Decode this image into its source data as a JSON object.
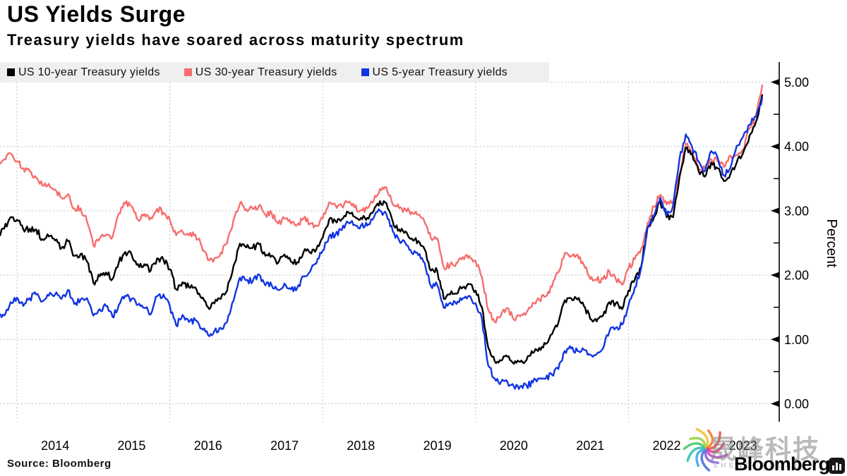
{
  "header": {
    "title": "US Yields Surge",
    "subtitle": "Treasury yields have soared across maturity spectrum"
  },
  "legend": {
    "items": [
      {
        "label": "US 10-year Treasury yields",
        "color": "#000000"
      },
      {
        "label": "US 30-year Treasury yields",
        "color": "#f66e6e"
      },
      {
        "label": "US 5-year Treasury yields",
        "color": "#1335e0"
      }
    ]
  },
  "axis": {
    "ylabel": "Percent",
    "yticks": [
      "5.00",
      "4.00",
      "3.00",
      "2.00",
      "1.00",
      "0.00"
    ],
    "ytick_values": [
      5,
      4,
      3,
      2,
      1,
      0
    ],
    "minor_tick_values": [
      0.5,
      1.5,
      2.5,
      3.5,
      4.5
    ],
    "x_years": [
      "2014",
      "2015",
      "2016",
      "2017",
      "2018",
      "2019",
      "2020",
      "2021",
      "2022",
      "2023"
    ]
  },
  "source": "Source: Bloomberg",
  "watermark": {
    "cn": "晟峰科技",
    "en": "SHENGFENGKEJI",
    "brand": "Bloomberg",
    "swirl_colors": [
      "#4fc46a",
      "#9ed04a",
      "#f2c335",
      "#ef7d2f",
      "#e8554f",
      "#e0407a",
      "#c04fd0",
      "#8a5fd8",
      "#4f6de0",
      "#3fa8e8",
      "#35c0b0"
    ]
  },
  "chart_data": {
    "type": "line",
    "title": "US Yields Surge",
    "subtitle": "Treasury yields have soared across maturity spectrum",
    "xlabel": "",
    "ylabel": "Percent",
    "ylim": [
      0,
      5
    ],
    "grid": true,
    "legend_position": "top",
    "x_start": 2013.75,
    "x_step": 0.0833333,
    "x_end": 2023.75,
    "x_unit": "decimal year, monthly points Oct 2013 - Oct 2023",
    "x_gridline_years": [
      2014,
      2016,
      2018,
      2020,
      2022
    ],
    "series": [
      {
        "name": "US 10-year Treasury yields",
        "color": "#000000",
        "values": [
          2.62,
          2.72,
          2.9,
          2.86,
          2.71,
          2.72,
          2.71,
          2.56,
          2.6,
          2.54,
          2.42,
          2.53,
          2.3,
          2.33,
          2.21,
          1.88,
          1.98,
          2.04,
          1.94,
          2.2,
          2.36,
          2.32,
          2.17,
          2.17,
          2.07,
          2.26,
          2.24,
          2.09,
          1.78,
          1.89,
          1.81,
          1.81,
          1.64,
          1.5,
          1.56,
          1.63,
          1.76,
          2.14,
          2.49,
          2.43,
          2.42,
          2.48,
          2.3,
          2.3,
          2.19,
          2.32,
          2.21,
          2.2,
          2.36,
          2.35,
          2.4,
          2.58,
          2.86,
          2.84,
          2.87,
          2.98,
          2.91,
          2.89,
          2.89,
          3.0,
          3.15,
          3.12,
          2.83,
          2.71,
          2.68,
          2.57,
          2.53,
          2.4,
          2.07,
          2.06,
          1.63,
          1.7,
          1.71,
          1.81,
          1.86,
          1.76,
          1.5,
          0.87,
          0.66,
          0.67,
          0.73,
          0.62,
          0.65,
          0.68,
          0.79,
          0.87,
          0.93,
          1.08,
          1.26,
          1.61,
          1.64,
          1.62,
          1.52,
          1.32,
          1.28,
          1.37,
          1.58,
          1.56,
          1.47,
          1.76,
          1.93,
          2.13,
          2.75,
          2.9,
          3.14,
          2.9,
          2.9,
          3.52,
          3.98,
          3.89,
          3.62,
          3.53,
          3.75,
          3.66,
          3.46,
          3.57,
          3.75,
          3.9,
          4.17,
          4.38,
          4.8
        ]
      },
      {
        "name": "US 30-year Treasury yields",
        "color": "#f66e6e",
        "values": [
          3.68,
          3.8,
          3.89,
          3.77,
          3.66,
          3.62,
          3.52,
          3.39,
          3.42,
          3.33,
          3.2,
          3.26,
          3.04,
          3.04,
          2.83,
          2.46,
          2.57,
          2.63,
          2.59,
          2.96,
          3.11,
          3.07,
          2.86,
          2.95,
          2.89,
          3.03,
          2.97,
          2.86,
          2.62,
          2.68,
          2.62,
          2.63,
          2.45,
          2.23,
          2.26,
          2.35,
          2.5,
          2.86,
          3.11,
          3.02,
          3.03,
          3.08,
          2.94,
          2.96,
          2.8,
          2.88,
          2.8,
          2.78,
          2.88,
          2.8,
          2.77,
          2.88,
          3.13,
          3.09,
          3.07,
          3.13,
          3.05,
          3.01,
          3.04,
          3.15,
          3.34,
          3.36,
          3.1,
          3.04,
          3.02,
          2.98,
          2.94,
          2.82,
          2.57,
          2.57,
          2.12,
          2.16,
          2.19,
          2.28,
          2.3,
          2.22,
          1.97,
          1.46,
          1.27,
          1.38,
          1.49,
          1.31,
          1.36,
          1.42,
          1.57,
          1.62,
          1.67,
          1.82,
          2.04,
          2.34,
          2.3,
          2.32,
          2.16,
          1.94,
          1.92,
          1.94,
          2.06,
          1.94,
          1.85,
          2.1,
          2.25,
          2.41,
          2.81,
          3.07,
          3.25,
          3.1,
          3.13,
          3.56,
          4.04,
          3.92,
          3.66,
          3.66,
          3.8,
          3.77,
          3.68,
          3.86,
          3.87,
          3.95,
          4.28,
          4.47,
          4.95
        ]
      },
      {
        "name": "US 5-year Treasury yields",
        "color": "#1335e0",
        "values": [
          1.37,
          1.37,
          1.58,
          1.65,
          1.52,
          1.64,
          1.7,
          1.59,
          1.68,
          1.7,
          1.63,
          1.77,
          1.55,
          1.62,
          1.64,
          1.37,
          1.47,
          1.52,
          1.35,
          1.54,
          1.68,
          1.63,
          1.54,
          1.49,
          1.39,
          1.67,
          1.7,
          1.52,
          1.22,
          1.38,
          1.27,
          1.3,
          1.17,
          1.07,
          1.13,
          1.18,
          1.27,
          1.6,
          1.96,
          1.92,
          1.9,
          2.01,
          1.84,
          1.84,
          1.77,
          1.87,
          1.78,
          1.8,
          1.98,
          2.05,
          2.18,
          2.38,
          2.6,
          2.63,
          2.7,
          2.82,
          2.78,
          2.77,
          2.77,
          2.89,
          3.0,
          2.95,
          2.68,
          2.54,
          2.49,
          2.34,
          2.31,
          2.19,
          1.83,
          1.84,
          1.49,
          1.57,
          1.55,
          1.64,
          1.68,
          1.56,
          1.32,
          0.59,
          0.39,
          0.34,
          0.34,
          0.27,
          0.27,
          0.28,
          0.33,
          0.39,
          0.39,
          0.45,
          0.54,
          0.82,
          0.86,
          0.82,
          0.84,
          0.76,
          0.77,
          0.86,
          1.12,
          1.18,
          1.23,
          1.53,
          1.81,
          2.12,
          2.75,
          2.92,
          3.2,
          2.93,
          3.08,
          3.8,
          4.19,
          3.99,
          3.77,
          3.62,
          3.93,
          3.83,
          3.55,
          3.67,
          4.01,
          4.15,
          4.34,
          4.46,
          4.75
        ]
      }
    ]
  }
}
